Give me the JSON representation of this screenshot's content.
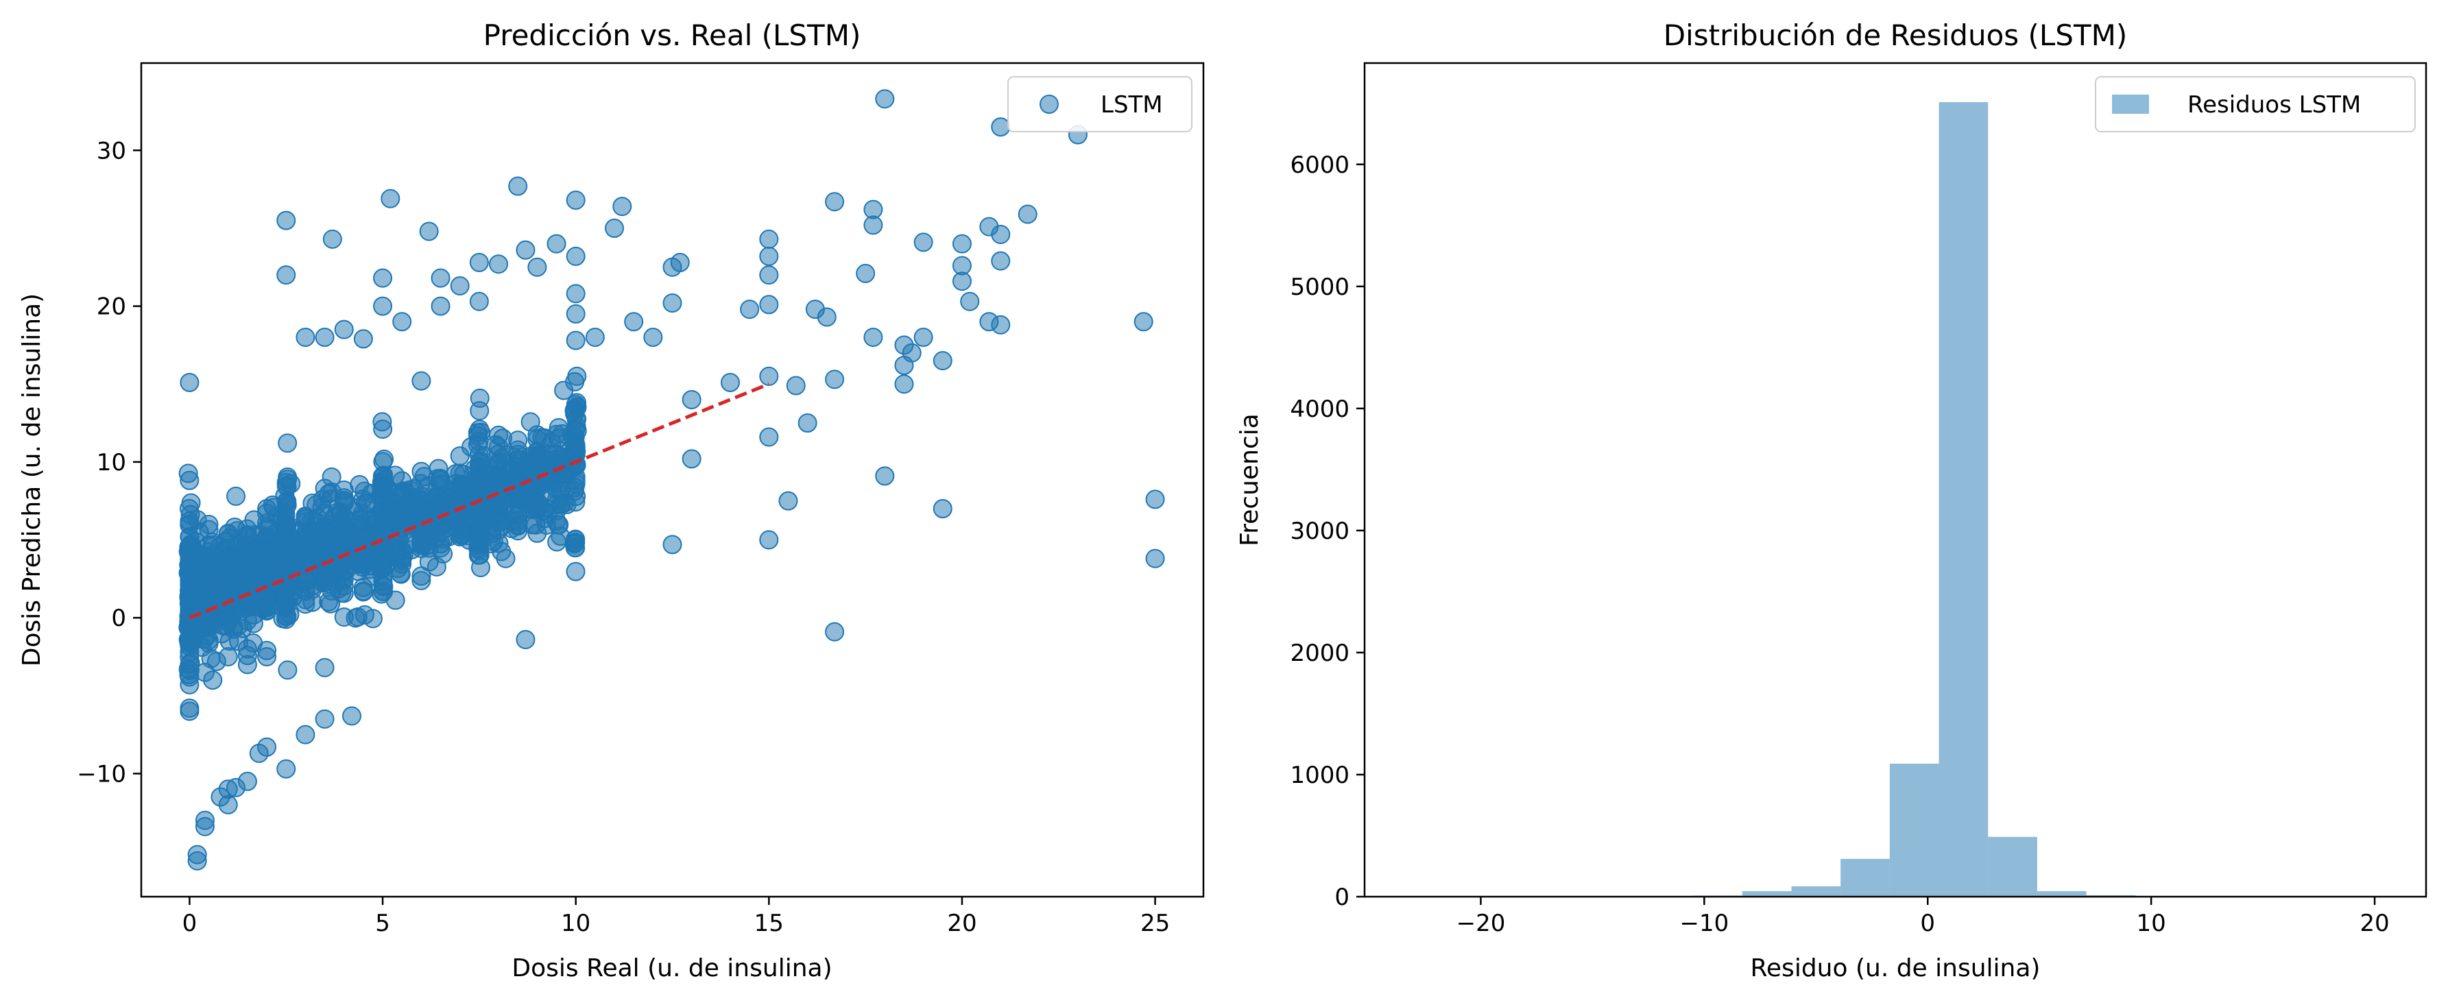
{
  "chart_data": [
    {
      "type": "scatter",
      "title": "Predicción vs. Real (LSTM)",
      "xlabel": "Dosis Real (u. de insulina)",
      "ylabel": "Dosis Predicha (u. de insulina)",
      "xlim": [
        -1.25,
        26.25
      ],
      "ylim": [
        -17.9,
        35.6
      ],
      "xticks": [
        0,
        5,
        10,
        15,
        20,
        25
      ],
      "xtick_labels": [
        "0",
        "5",
        "10",
        "15",
        "20",
        "25"
      ],
      "yticks": [
        -10,
        0,
        10,
        20,
        30
      ],
      "ytick_labels": [
        "−10",
        "0",
        "10",
        "20",
        "30"
      ],
      "grid": false,
      "legend_position": "top-right",
      "series": [
        {
          "name": "LSTM",
          "color": "#1f77b4",
          "points": [
            [
              0,
              15.1
            ],
            [
              0,
              6
            ],
            [
              0,
              5.2
            ],
            [
              0,
              4.5
            ],
            [
              0,
              3.8
            ],
            [
              0,
              3.2
            ],
            [
              0,
              2.5
            ],
            [
              0,
              1.8
            ],
            [
              0,
              1.2
            ],
            [
              0,
              0.6
            ],
            [
              0,
              0
            ],
            [
              0,
              -0.8
            ],
            [
              0,
              -1.5
            ],
            [
              0,
              -2.2
            ],
            [
              0,
              -3
            ],
            [
              0,
              -3.8
            ],
            [
              0,
              -4.3
            ],
            [
              0,
              -5.8
            ],
            [
              0,
              -6
            ],
            [
              0.2,
              6.3
            ],
            [
              0.2,
              -15.2
            ],
            [
              0.2,
              -15.6
            ],
            [
              0.4,
              -13
            ],
            [
              0.4,
              -13.4
            ],
            [
              0.4,
              -3.5
            ],
            [
              0.6,
              -4
            ],
            [
              0.7,
              -2.8
            ],
            [
              0.8,
              -11.5
            ],
            [
              1,
              -11
            ],
            [
              1,
              -12
            ],
            [
              1,
              -2.5
            ],
            [
              1.2,
              -10.9
            ],
            [
              1.2,
              7.8
            ],
            [
              1.5,
              -10.5
            ],
            [
              1.5,
              -2
            ],
            [
              1.5,
              -3
            ],
            [
              1.8,
              -8.7
            ],
            [
              2,
              -8.3
            ],
            [
              2,
              -2.1
            ],
            [
              2,
              -2.5
            ],
            [
              2,
              7
            ],
            [
              2.5,
              -9.7
            ],
            [
              2.5,
              25.5
            ],
            [
              2.5,
              22
            ],
            [
              3,
              -7.5
            ],
            [
              3,
              18
            ],
            [
              3.5,
              -6.5
            ],
            [
              3.5,
              -3.2
            ],
            [
              3.5,
              18
            ],
            [
              3.7,
              24.3
            ],
            [
              4,
              18.5
            ],
            [
              4.2,
              -6.3
            ],
            [
              4.5,
              17.9
            ],
            [
              5,
              21.8
            ],
            [
              5,
              20
            ],
            [
              5.2,
              26.9
            ],
            [
              5.5,
              19
            ],
            [
              6,
              15.2
            ],
            [
              6.2,
              24.8
            ],
            [
              6.5,
              21.8
            ],
            [
              6.5,
              20
            ],
            [
              7,
              21.3
            ],
            [
              7.5,
              20.3
            ],
            [
              7.5,
              22.8
            ],
            [
              8,
              22.7
            ],
            [
              8.5,
              27.7
            ],
            [
              8.7,
              23.6
            ],
            [
              8.7,
              -1.4
            ],
            [
              9,
              22.5
            ],
            [
              9.5,
              24
            ],
            [
              10,
              26.8
            ],
            [
              10,
              23.2
            ],
            [
              10,
              20.8
            ],
            [
              10,
              19.5
            ],
            [
              10,
              17.8
            ],
            [
              10.5,
              18
            ],
            [
              11,
              25
            ],
            [
              11.2,
              26.4
            ],
            [
              11.5,
              19
            ],
            [
              12,
              18
            ],
            [
              12.5,
              20.2
            ],
            [
              12.5,
              22.5
            ],
            [
              12.7,
              22.8
            ],
            [
              12.5,
              4.7
            ],
            [
              13,
              10.2
            ],
            [
              13,
              14
            ],
            [
              14,
              15.1
            ],
            [
              14.5,
              19.8
            ],
            [
              15,
              24.3
            ],
            [
              15,
              23.2
            ],
            [
              15,
              22
            ],
            [
              15,
              20.1
            ],
            [
              15,
              15.5
            ],
            [
              15,
              11.6
            ],
            [
              15,
              5
            ],
            [
              15.5,
              7.5
            ],
            [
              15.7,
              14.9
            ],
            [
              16,
              12.5
            ],
            [
              16.2,
              19.8
            ],
            [
              16.5,
              19.3
            ],
            [
              16.7,
              26.7
            ],
            [
              16.7,
              15.3
            ],
            [
              16.7,
              -0.9
            ],
            [
              17.5,
              22.1
            ],
            [
              17.7,
              26.2
            ],
            [
              17.7,
              25.2
            ],
            [
              17.7,
              18
            ],
            [
              18,
              33.3
            ],
            [
              18,
              9.1
            ],
            [
              18.5,
              17.5
            ],
            [
              18.5,
              16.2
            ],
            [
              18.5,
              15
            ],
            [
              18.7,
              17
            ],
            [
              19,
              24.1
            ],
            [
              19,
              18
            ],
            [
              19.5,
              16.5
            ],
            [
              19.5,
              7
            ],
            [
              20,
              24
            ],
            [
              20,
              22.6
            ],
            [
              20,
              21.6
            ],
            [
              20.2,
              20.3
            ],
            [
              20.7,
              25.1
            ],
            [
              20.7,
              19
            ],
            [
              21,
              31.5
            ],
            [
              21,
              24.6
            ],
            [
              21,
              22.9
            ],
            [
              21,
              18.8
            ],
            [
              21.7,
              25.9
            ],
            [
              23,
              31
            ],
            [
              24.7,
              19
            ],
            [
              25,
              7.6
            ],
            [
              25,
              3.8
            ]
          ]
        }
      ],
      "dense_cloud": [
        {
          "x0": 0,
          "x1": 10,
          "center_slope": 0.8,
          "spread": 2.0
        }
      ],
      "reference_line": {
        "x": [
          0,
          15
        ],
        "y": [
          0,
          15
        ],
        "color": "#d62728",
        "style": "dashed"
      }
    },
    {
      "type": "bar",
      "title": "Distribución de Residuos (LSTM)",
      "xlabel": "Residuo (u. de insulina)",
      "ylabel": "Frecuencia",
      "xlim": [
        -25.2,
        22.3
      ],
      "ylim": [
        0,
        6830
      ],
      "xticks": [
        -20,
        -10,
        0,
        10,
        20
      ],
      "xtick_labels": [
        "−20",
        "−10",
        "0",
        "10",
        "20"
      ],
      "yticks": [
        0,
        1000,
        2000,
        3000,
        4000,
        5000,
        6000
      ],
      "ytick_labels": [
        "0",
        "1000",
        "2000",
        "3000",
        "4000",
        "5000",
        "6000"
      ],
      "grid": false,
      "legend_position": "top-right",
      "series": [
        {
          "name": "Residuos LSTM",
          "color": "#1f77b4",
          "bin_edges": [
            -23.7,
            -21.5,
            -19.3,
            -17.1,
            -14.9,
            -12.7,
            -10.5,
            -8.3,
            -6.1,
            -3.9,
            -1.7,
            0.5,
            2.7,
            4.9,
            7.1,
            9.3,
            11.5,
            13.7,
            15.9,
            18.1,
            20.3
          ],
          "values": [
            1,
            0,
            1,
            2,
            3,
            6,
            9,
            45,
            85,
            310,
            1090,
            6510,
            490,
            45,
            12,
            4,
            2,
            1,
            0,
            1
          ]
        }
      ]
    }
  ]
}
